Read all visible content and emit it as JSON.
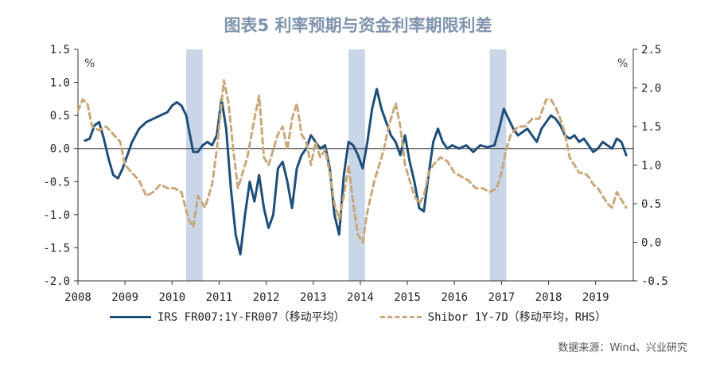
{
  "title": "图表5 利率预期与资金利率期限利差",
  "source": "数据来源：Wind、兴业研究",
  "chart_data": {
    "type": "line",
    "left_axis": {
      "unit_label": "%",
      "ylim": [
        -2.0,
        1.5
      ],
      "ticks": [
        "1.5",
        "1.0",
        "0.5",
        "0.0",
        "-0.5",
        "-1.0",
        "-1.5",
        "-2.0"
      ]
    },
    "right_axis": {
      "unit_label": "%",
      "ylim": [
        -0.5,
        2.5
      ],
      "ticks": [
        "2.5",
        "2.0",
        "1.5",
        "1.0",
        "0.5",
        "0.0",
        "-0.5"
      ]
    },
    "x_ticks": [
      "2008",
      "2009",
      "2010",
      "2011",
      "2012",
      "2013",
      "2014",
      "2015",
      "2016",
      "2017",
      "2018",
      "2019"
    ],
    "xlim": [
      2008.0,
      2019.8
    ],
    "shaded_periods": [
      [
        2010.3,
        2010.65
      ],
      [
        2013.75,
        2014.1
      ],
      [
        2016.75,
        2017.1
      ]
    ],
    "series": [
      {
        "name": "IRS FR007:1Y-FR007（移动平均）",
        "axis": "left",
        "color": "#1f4e79",
        "style": "solid",
        "points": [
          [
            2008.15,
            0.12
          ],
          [
            2008.25,
            0.15
          ],
          [
            2008.35,
            0.35
          ],
          [
            2008.45,
            0.4
          ],
          [
            2008.55,
            0.15
          ],
          [
            2008.65,
            -0.15
          ],
          [
            2008.75,
            -0.4
          ],
          [
            2008.85,
            -0.45
          ],
          [
            2008.95,
            -0.3
          ],
          [
            2009.05,
            -0.1
          ],
          [
            2009.15,
            0.1
          ],
          [
            2009.3,
            0.3
          ],
          [
            2009.45,
            0.4
          ],
          [
            2009.6,
            0.45
          ],
          [
            2009.75,
            0.5
          ],
          [
            2009.9,
            0.55
          ],
          [
            2010.0,
            0.65
          ],
          [
            2010.1,
            0.7
          ],
          [
            2010.2,
            0.65
          ],
          [
            2010.3,
            0.5
          ],
          [
            2010.38,
            0.2
          ],
          [
            2010.45,
            -0.05
          ],
          [
            2010.55,
            -0.05
          ],
          [
            2010.65,
            0.05
          ],
          [
            2010.75,
            0.1
          ],
          [
            2010.85,
            0.05
          ],
          [
            2010.95,
            0.2
          ],
          [
            2011.05,
            0.75
          ],
          [
            2011.15,
            0.3
          ],
          [
            2011.25,
            -0.6
          ],
          [
            2011.35,
            -1.3
          ],
          [
            2011.45,
            -1.6
          ],
          [
            2011.55,
            -1.0
          ],
          [
            2011.65,
            -0.5
          ],
          [
            2011.75,
            -0.8
          ],
          [
            2011.85,
            -0.4
          ],
          [
            2011.95,
            -0.9
          ],
          [
            2012.05,
            -1.2
          ],
          [
            2012.15,
            -1.0
          ],
          [
            2012.25,
            -0.3
          ],
          [
            2012.35,
            -0.2
          ],
          [
            2012.45,
            -0.5
          ],
          [
            2012.55,
            -0.9
          ],
          [
            2012.65,
            -0.3
          ],
          [
            2012.75,
            -0.1
          ],
          [
            2012.85,
            0.0
          ],
          [
            2012.95,
            0.2
          ],
          [
            2013.05,
            0.1
          ],
          [
            2013.15,
            0.0
          ],
          [
            2013.25,
            0.05
          ],
          [
            2013.35,
            -0.3
          ],
          [
            2013.45,
            -1.0
          ],
          [
            2013.55,
            -1.3
          ],
          [
            2013.65,
            -0.4
          ],
          [
            2013.75,
            0.1
          ],
          [
            2013.85,
            0.05
          ],
          [
            2013.95,
            -0.1
          ],
          [
            2014.05,
            -0.3
          ],
          [
            2014.15,
            0.1
          ],
          [
            2014.25,
            0.6
          ],
          [
            2014.35,
            0.9
          ],
          [
            2014.45,
            0.6
          ],
          [
            2014.55,
            0.4
          ],
          [
            2014.65,
            0.2
          ],
          [
            2014.75,
            0.1
          ],
          [
            2014.85,
            -0.1
          ],
          [
            2014.95,
            0.2
          ],
          [
            2015.05,
            -0.2
          ],
          [
            2015.15,
            -0.5
          ],
          [
            2015.25,
            -0.9
          ],
          [
            2015.35,
            -0.95
          ],
          [
            2015.45,
            -0.4
          ],
          [
            2015.55,
            0.1
          ],
          [
            2015.65,
            0.3
          ],
          [
            2015.75,
            0.1
          ],
          [
            2015.85,
            0.0
          ],
          [
            2015.95,
            0.05
          ],
          [
            2016.1,
            0.0
          ],
          [
            2016.25,
            0.05
          ],
          [
            2016.4,
            -0.05
          ],
          [
            2016.55,
            0.05
          ],
          [
            2016.7,
            0.02
          ],
          [
            2016.85,
            0.05
          ],
          [
            2016.95,
            0.3
          ],
          [
            2017.05,
            0.6
          ],
          [
            2017.15,
            0.45
          ],
          [
            2017.25,
            0.3
          ],
          [
            2017.35,
            0.2
          ],
          [
            2017.45,
            0.25
          ],
          [
            2017.55,
            0.3
          ],
          [
            2017.65,
            0.2
          ],
          [
            2017.75,
            0.1
          ],
          [
            2017.85,
            0.3
          ],
          [
            2017.95,
            0.4
          ],
          [
            2018.05,
            0.5
          ],
          [
            2018.15,
            0.45
          ],
          [
            2018.25,
            0.35
          ],
          [
            2018.35,
            0.2
          ],
          [
            2018.45,
            0.15
          ],
          [
            2018.55,
            0.2
          ],
          [
            2018.65,
            0.1
          ],
          [
            2018.75,
            0.15
          ],
          [
            2018.85,
            0.05
          ],
          [
            2018.95,
            -0.05
          ],
          [
            2019.05,
            0.0
          ],
          [
            2019.15,
            0.1
          ],
          [
            2019.25,
            0.05
          ],
          [
            2019.35,
            0.0
          ],
          [
            2019.45,
            0.15
          ],
          [
            2019.55,
            0.1
          ],
          [
            2019.65,
            -0.1
          ]
        ]
      },
      {
        "name": "Shibor 1Y-7D（移动平均，RHS）",
        "axis": "right",
        "color": "#c8a87a",
        "style": "dashed",
        "points": [
          [
            2008.0,
            1.7
          ],
          [
            2008.1,
            1.85
          ],
          [
            2008.2,
            1.8
          ],
          [
            2008.3,
            1.5
          ],
          [
            2008.45,
            1.45
          ],
          [
            2008.6,
            1.5
          ],
          [
            2008.75,
            1.4
          ],
          [
            2008.9,
            1.3
          ],
          [
            2009.0,
            1.0
          ],
          [
            2009.15,
            0.9
          ],
          [
            2009.3,
            0.8
          ],
          [
            2009.45,
            0.6
          ],
          [
            2009.6,
            0.65
          ],
          [
            2009.75,
            0.75
          ],
          [
            2009.9,
            0.7
          ],
          [
            2010.05,
            0.7
          ],
          [
            2010.2,
            0.65
          ],
          [
            2010.35,
            0.3
          ],
          [
            2010.45,
            0.2
          ],
          [
            2010.55,
            0.6
          ],
          [
            2010.7,
            0.45
          ],
          [
            2010.85,
            0.75
          ],
          [
            2010.95,
            1.2
          ],
          [
            2011.1,
            2.1
          ],
          [
            2011.2,
            1.8
          ],
          [
            2011.3,
            1.2
          ],
          [
            2011.4,
            0.7
          ],
          [
            2011.5,
            0.9
          ],
          [
            2011.6,
            1.1
          ],
          [
            2011.75,
            1.6
          ],
          [
            2011.85,
            1.9
          ],
          [
            2011.95,
            1.1
          ],
          [
            2012.05,
            1.0
          ],
          [
            2012.15,
            1.2
          ],
          [
            2012.25,
            1.4
          ],
          [
            2012.35,
            1.5
          ],
          [
            2012.45,
            1.2
          ],
          [
            2012.55,
            1.6
          ],
          [
            2012.65,
            1.8
          ],
          [
            2012.75,
            1.4
          ],
          [
            2012.85,
            1.3
          ],
          [
            2012.95,
            1.0
          ],
          [
            2013.05,
            1.3
          ],
          [
            2013.15,
            1.1
          ],
          [
            2013.25,
            1.2
          ],
          [
            2013.35,
            0.9
          ],
          [
            2013.45,
            0.5
          ],
          [
            2013.55,
            0.3
          ],
          [
            2013.65,
            0.6
          ],
          [
            2013.75,
            1.0
          ],
          [
            2013.85,
            0.5
          ],
          [
            2013.95,
            0.1
          ],
          [
            2014.05,
            0.0
          ],
          [
            2014.15,
            0.4
          ],
          [
            2014.3,
            0.8
          ],
          [
            2014.4,
            1.0
          ],
          [
            2014.5,
            1.2
          ],
          [
            2014.6,
            1.5
          ],
          [
            2014.75,
            1.8
          ],
          [
            2014.85,
            1.5
          ],
          [
            2014.95,
            1.0
          ],
          [
            2015.05,
            0.8
          ],
          [
            2015.15,
            0.6
          ],
          [
            2015.25,
            0.5
          ],
          [
            2015.35,
            0.6
          ],
          [
            2015.45,
            0.9
          ],
          [
            2015.55,
            1.0
          ],
          [
            2015.7,
            1.1
          ],
          [
            2015.85,
            1.05
          ],
          [
            2016.0,
            0.9
          ],
          [
            2016.15,
            0.85
          ],
          [
            2016.3,
            0.8
          ],
          [
            2016.45,
            0.7
          ],
          [
            2016.6,
            0.7
          ],
          [
            2016.75,
            0.65
          ],
          [
            2016.9,
            0.7
          ],
          [
            2017.0,
            0.9
          ],
          [
            2017.1,
            1.2
          ],
          [
            2017.2,
            1.4
          ],
          [
            2017.35,
            1.5
          ],
          [
            2017.5,
            1.5
          ],
          [
            2017.65,
            1.6
          ],
          [
            2017.8,
            1.6
          ],
          [
            2017.95,
            1.85
          ],
          [
            2018.05,
            1.85
          ],
          [
            2018.15,
            1.75
          ],
          [
            2018.25,
            1.6
          ],
          [
            2018.35,
            1.4
          ],
          [
            2018.45,
            1.1
          ],
          [
            2018.55,
            1.0
          ],
          [
            2018.65,
            0.9
          ],
          [
            2018.75,
            0.9
          ],
          [
            2018.85,
            0.85
          ],
          [
            2018.95,
            0.75
          ],
          [
            2019.05,
            0.7
          ],
          [
            2019.15,
            0.6
          ],
          [
            2019.25,
            0.5
          ],
          [
            2019.35,
            0.45
          ],
          [
            2019.45,
            0.65
          ],
          [
            2019.55,
            0.55
          ],
          [
            2019.65,
            0.45
          ]
        ]
      }
    ]
  }
}
